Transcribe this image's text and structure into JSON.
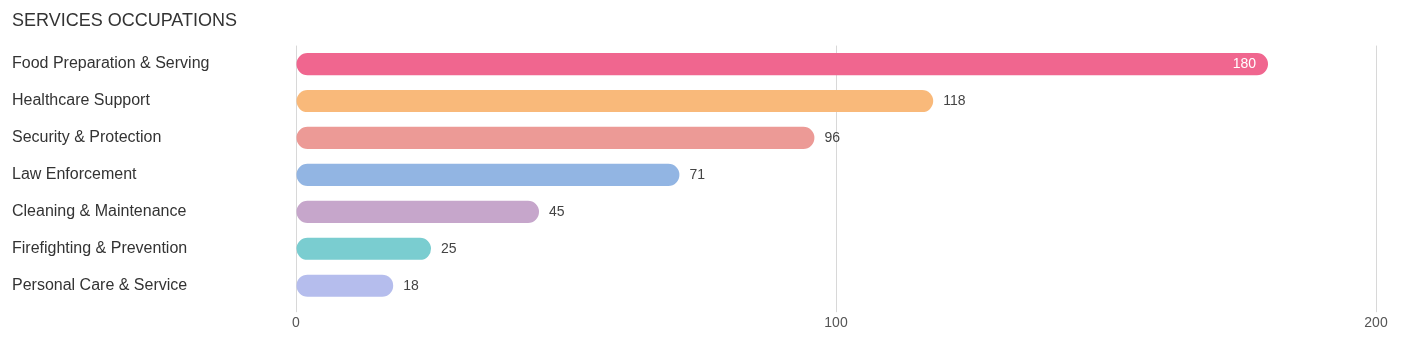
{
  "chart_data": {
    "type": "bar",
    "orientation": "horizontal",
    "title": "SERVICES OCCUPATIONS",
    "categories": [
      "Food Preparation & Serving",
      "Healthcare Support",
      "Security & Protection",
      "Law Enforcement",
      "Cleaning & Maintenance",
      "Firefighting & Prevention",
      "Personal Care & Service"
    ],
    "values": [
      180,
      118,
      96,
      71,
      45,
      25,
      18
    ],
    "colors": [
      "#f0668f",
      "#f9b97a",
      "#ec9a96",
      "#92b5e3",
      "#c6a6cb",
      "#7acdd0",
      "#b5bded"
    ],
    "xlim": [
      0,
      200
    ],
    "xticks": [
      0,
      100,
      200
    ],
    "grid": "x",
    "data_labels": true,
    "legend": false
  }
}
